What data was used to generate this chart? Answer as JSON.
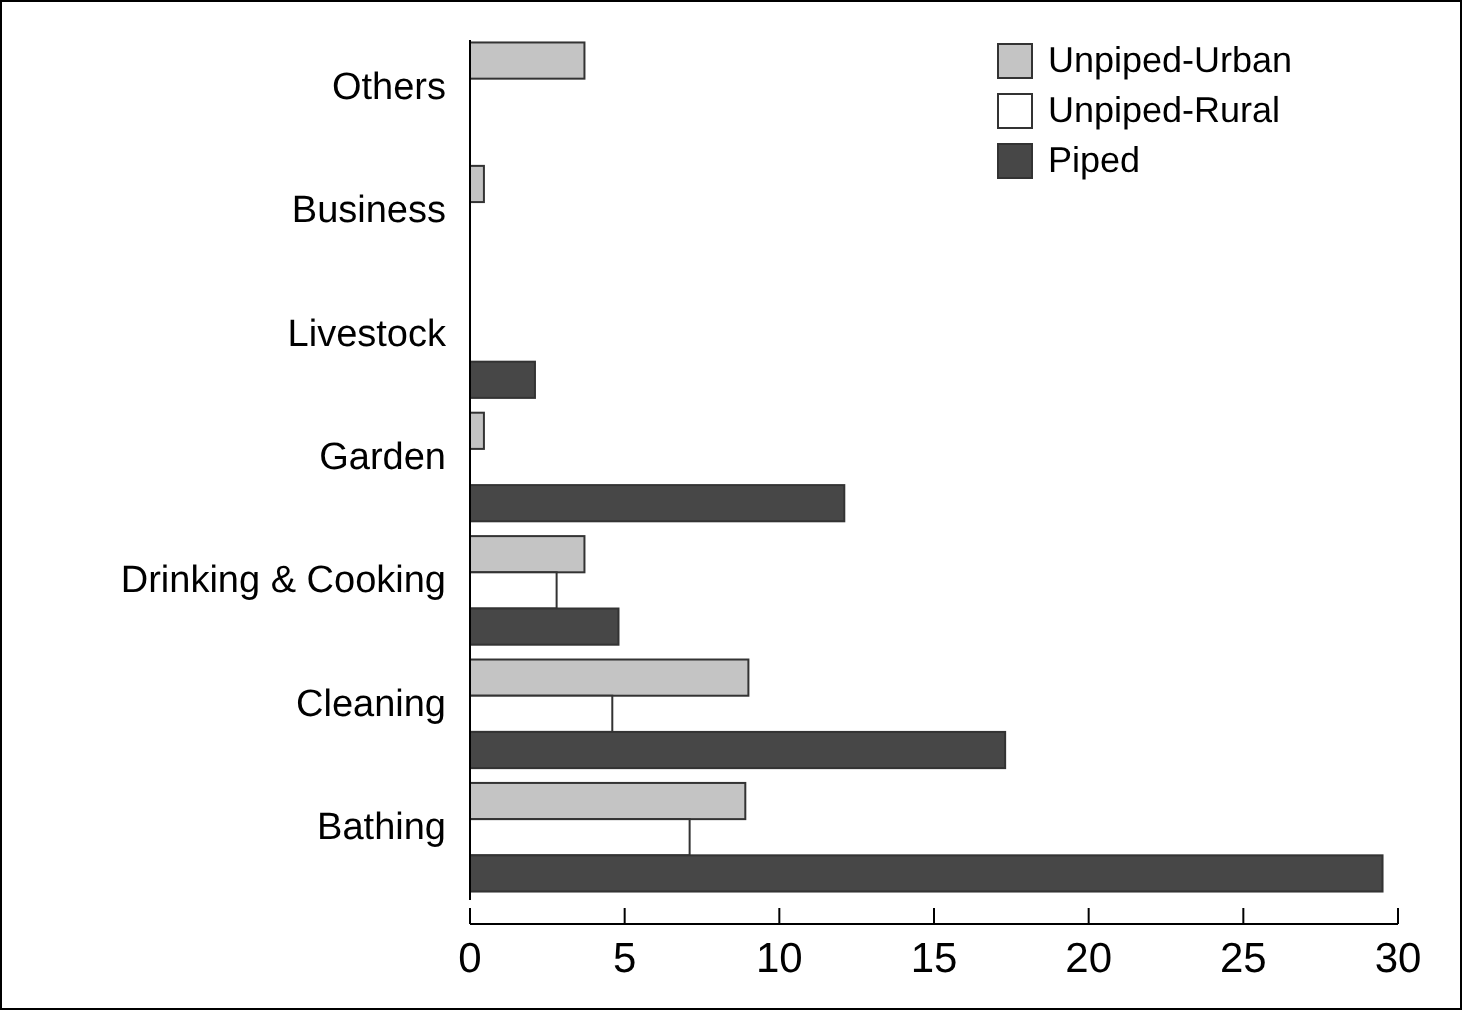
{
  "chart_data": {
    "type": "bar",
    "orientation": "horizontal",
    "categories": [
      "Others",
      "Business",
      "Livestock",
      "Garden",
      "Drinking & Cooking",
      "Cleaning",
      "Bathing"
    ],
    "series": [
      {
        "name": "Unpiped-Urban",
        "color": "#c4c4c4",
        "values": [
          3.7,
          0.45,
          null,
          0.45,
          3.7,
          9.0,
          8.9
        ]
      },
      {
        "name": "Unpiped-Rural",
        "color": "#ffffff",
        "values": [
          null,
          null,
          null,
          null,
          2.8,
          4.6,
          7.1
        ]
      },
      {
        "name": "Piped",
        "color": "#474747",
        "values": [
          null,
          null,
          2.1,
          12.1,
          4.8,
          17.3,
          29.5
        ]
      }
    ],
    "xlim": [
      0,
      30
    ],
    "xticks": [
      0,
      5,
      10,
      15,
      20,
      25,
      30
    ],
    "legend": "top right",
    "grid": false
  }
}
